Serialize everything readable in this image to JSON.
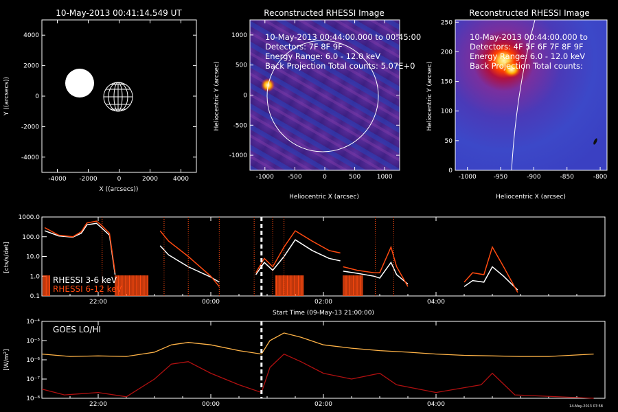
{
  "panel_solar": {
    "title": "10-May-2013 00:41:14.549 UT",
    "xlabel": "X ((arcsecs))",
    "ylabel": "Y ((arcsecs))",
    "ticks": [
      "-4000",
      "-2000",
      "0",
      "2000",
      "4000"
    ]
  },
  "panel_rhessi1": {
    "title": "Reconstructed RHESSI Image",
    "info": [
      "10-May-2013 00:44:00.000 to 00:45:00",
      "Detectors: 7F 8F 9F",
      "Energy Range: 6.0 - 12.0 keV",
      "Back Projection      Total counts: 5.07E+0"
    ],
    "xlabel": "Heliocentric X (arcsec)",
    "ylabel": "Heliocentric Y (arcsec)",
    "xticks": [
      "-1000",
      "-500",
      "0",
      "500",
      "1000"
    ],
    "yticks": [
      "1000",
      "500",
      "0",
      "-500",
      "-1000"
    ]
  },
  "panel_rhessi2": {
    "title": "Reconstructed RHESSI Image",
    "info": [
      "10-May-2013 00:44:00.000 to",
      "Detectors: 4F 5F 6F 7F 8F 9F",
      "Energy Range: 6.0 - 12.0 keV",
      "Back Projection      Total counts:"
    ],
    "xlabel": "Heliocentric X (arcsec)",
    "ylabel": "Heliocentric Y (arcsec)",
    "xticks": [
      "-1000",
      "-950",
      "-900",
      "-850",
      "-800"
    ],
    "yticks": [
      "250",
      "200",
      "150",
      "100",
      "50",
      "0"
    ]
  },
  "chart_data": [
    {
      "type": "line",
      "ylabel": "[cts/s/det]",
      "xlabel": "Start Time (09-May-13 21:00:00)",
      "scale": "log",
      "ylim": [
        0.1,
        1000
      ],
      "yticks": [
        "1000.0",
        "100.0",
        "10.0",
        "1.0",
        "0.1"
      ],
      "xticks": [
        "22:00",
        "00:00",
        "02:00",
        "04:00"
      ],
      "legend": [
        "RHESSI  3-6 keV",
        "RHESSI  6-12 keV"
      ],
      "series": [
        {
          "name": "RHESSI  3-6 keV",
          "color": "#ffffff",
          "segments": [
            [
              [
                21.05,
                200
              ],
              [
                21.3,
                110
              ],
              [
                21.55,
                95
              ],
              [
                21.7,
                150
              ],
              [
                21.8,
                400
              ],
              [
                21.97,
                480
              ],
              [
                22.05,
                300
              ],
              [
                22.2,
                120
              ],
              [
                22.3,
                1.2
              ]
            ],
            [
              [
                23.1,
                35
              ],
              [
                23.25,
                12
              ],
              [
                23.6,
                3
              ],
              [
                24.0,
                0.9
              ],
              [
                24.15,
                0.5
              ]
            ],
            [
              [
                24.8,
                1.2
              ],
              [
                24.95,
                5
              ],
              [
                25.1,
                2
              ],
              [
                25.3,
                10
              ],
              [
                25.5,
                70
              ],
              [
                25.8,
                20
              ],
              [
                26.1,
                8
              ],
              [
                26.3,
                6
              ]
            ],
            [
              [
                26.35,
                1.8
              ],
              [
                26.6,
                1.4
              ],
              [
                26.9,
                1.0
              ],
              [
                27.0,
                0.8
              ],
              [
                27.2,
                5.0
              ],
              [
                27.3,
                1.2
              ],
              [
                27.5,
                0.4
              ]
            ],
            [
              [
                28.5,
                0.3
              ],
              [
                28.65,
                0.6
              ],
              [
                28.85,
                0.5
              ],
              [
                29.0,
                3.0
              ],
              [
                29.2,
                1.0
              ],
              [
                29.45,
                0.2
              ]
            ]
          ]
        },
        {
          "name": "RHESSI  6-12 keV",
          "color": "#ff4a10",
          "segments": [
            [
              [
                21.05,
                290
              ],
              [
                21.3,
                120
              ],
              [
                21.55,
                100
              ],
              [
                21.7,
                180
              ],
              [
                21.8,
                500
              ],
              [
                21.97,
                620
              ],
              [
                22.05,
                400
              ],
              [
                22.2,
                150
              ],
              [
                22.3,
                1.5
              ]
            ],
            [
              [
                23.1,
                200
              ],
              [
                23.25,
                60
              ],
              [
                23.6,
                10
              ],
              [
                24.0,
                1.0
              ],
              [
                24.15,
                0.3
              ]
            ],
            [
              [
                24.8,
                1.5
              ],
              [
                24.95,
                8
              ],
              [
                25.1,
                3
              ],
              [
                25.3,
                30
              ],
              [
                25.5,
                200
              ],
              [
                25.8,
                60
              ],
              [
                26.1,
                20
              ],
              [
                26.3,
                15
              ]
            ],
            [
              [
                26.35,
                3
              ],
              [
                26.6,
                2
              ],
              [
                26.9,
                1.5
              ],
              [
                27.0,
                1.5
              ],
              [
                27.2,
                30
              ],
              [
                27.3,
                3
              ],
              [
                27.5,
                0.3
              ]
            ],
            [
              [
                28.5,
                0.5
              ],
              [
                28.65,
                1.5
              ],
              [
                28.85,
                1.2
              ],
              [
                29.0,
                30
              ],
              [
                29.2,
                3
              ],
              [
                29.45,
                0.15
              ]
            ]
          ]
        }
      ],
      "cursor_x": 24.9,
      "marks_x": [
        22.07,
        23.17,
        23.6,
        24.15,
        24.77,
        25.1,
        25.3,
        26.92,
        27.25
      ]
    },
    {
      "type": "line",
      "ylabel": "[W/m²]",
      "xlabel": "Start Time (09-May-13 21:00:00)",
      "scale": "log",
      "ylim": [
        1e-08,
        0.0001
      ],
      "yticks": [
        "10⁻⁴",
        "10⁻⁵",
        "10⁻⁶",
        "10⁻⁷",
        "10⁻⁸"
      ],
      "xticks": [
        "22:00",
        "00:00",
        "02:00",
        "04:00"
      ],
      "legend": [
        "GOES LO/HI"
      ],
      "series": [
        {
          "name": "GOES LO",
          "color": "#ffb347",
          "points": [
            [
              21,
              2e-06
            ],
            [
              21.5,
              1.5e-06
            ],
            [
              22.0,
              1.6e-06
            ],
            [
              22.5,
              1.5e-06
            ],
            [
              23.0,
              2.5e-06
            ],
            [
              23.3,
              6e-06
            ],
            [
              23.6,
              8e-06
            ],
            [
              24.0,
              6e-06
            ],
            [
              24.5,
              3e-06
            ],
            [
              24.9,
              2e-06
            ],
            [
              25.05,
              1e-05
            ],
            [
              25.3,
              2.5e-05
            ],
            [
              25.6,
              1.5e-05
            ],
            [
              26.0,
              6e-06
            ],
            [
              26.5,
              4e-06
            ],
            [
              27.0,
              3e-06
            ],
            [
              27.5,
              2.5e-06
            ],
            [
              28.0,
              2e-06
            ],
            [
              28.5,
              1.7e-06
            ],
            [
              29.0,
              1.6e-06
            ],
            [
              29.5,
              1.5e-06
            ],
            [
              30.0,
              1.5e-06
            ],
            [
              30.8,
              2e-06
            ]
          ]
        },
        {
          "name": "GOES HI",
          "color": "#b01010",
          "points": [
            [
              21,
              3e-08
            ],
            [
              21.4,
              1.5e-08
            ],
            [
              22.0,
              2e-08
            ],
            [
              22.5,
              1.2e-08
            ],
            [
              23.0,
              1e-07
            ],
            [
              23.3,
              6e-07
            ],
            [
              23.6,
              8e-07
            ],
            [
              24.0,
              2e-07
            ],
            [
              24.5,
              5e-08
            ],
            [
              24.9,
              2e-08
            ],
            [
              25.05,
              4e-07
            ],
            [
              25.3,
              2e-06
            ],
            [
              25.6,
              8e-07
            ],
            [
              26.0,
              2e-07
            ],
            [
              26.5,
              1e-07
            ],
            [
              27.0,
              2e-07
            ],
            [
              27.3,
              5e-08
            ],
            [
              28.0,
              2e-08
            ],
            [
              28.8,
              5e-08
            ],
            [
              29.0,
              2e-07
            ],
            [
              29.4,
              1.5e-08
            ],
            [
              30.8,
              1e-08
            ]
          ]
        }
      ],
      "cursor_x": 24.9
    }
  ],
  "timestamp": "14-May-2013 07:58"
}
